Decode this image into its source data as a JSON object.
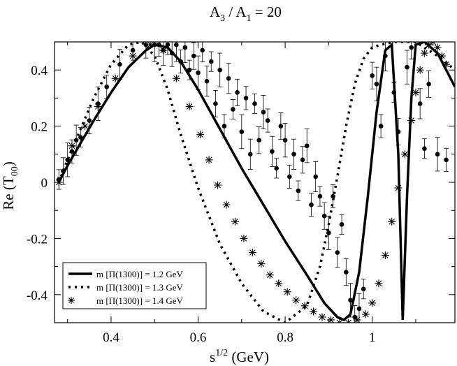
{
  "chart_data": {
    "type": "line",
    "title": {
      "main": "A",
      "sub1": "3",
      "sep": " / A",
      "sub2": "1",
      "rhs": " = 20"
    },
    "xlabel": {
      "main": "s",
      "sup": "1/2",
      "rest": " (GeV)"
    },
    "ylabel": {
      "main": "Re (T",
      "sub": "00",
      "rest": ")"
    },
    "xlim": [
      0.27,
      1.19
    ],
    "ylim": [
      -0.5,
      0.5
    ],
    "x_ticks": [
      0.4,
      0.6,
      0.8,
      1.0
    ],
    "x_tick_labels": [
      "0.4",
      "0.6",
      "0.8",
      "1"
    ],
    "y_ticks": [
      0.4,
      0.2,
      0.0,
      -0.2,
      -0.4
    ],
    "y_tick_labels": [
      "0.4",
      "0.2",
      "0",
      "-0.2",
      "-0.4"
    ],
    "legend": [
      {
        "label": "m [Π(1300)]  = 1.2 GeV",
        "style": "solid"
      },
      {
        "label": "m [Π(1300)]  = 1.3 GeV",
        "style": "dotted"
      },
      {
        "label": "m [Π(1300)]  = 1.4 GeV",
        "style": "asterisk"
      }
    ],
    "series": [
      {
        "name": "m [Π(1300)] = 1.2 GeV",
        "style": "solid",
        "x": [
          0.28,
          0.3,
          0.33,
          0.36,
          0.4,
          0.44,
          0.48,
          0.5,
          0.53,
          0.56,
          0.6,
          0.65,
          0.7,
          0.75,
          0.8,
          0.85,
          0.89,
          0.92,
          0.935,
          0.95,
          0.97,
          0.99,
          1.01,
          1.03,
          1.045,
          1.06,
          1.07,
          1.08,
          1.09,
          1.1,
          1.12,
          1.15,
          1.19
        ],
        "y": [
          0.0,
          0.06,
          0.14,
          0.22,
          0.32,
          0.41,
          0.47,
          0.49,
          0.48,
          0.43,
          0.33,
          0.19,
          0.05,
          -0.08,
          -0.21,
          -0.33,
          -0.43,
          -0.48,
          -0.49,
          -0.47,
          -0.32,
          -0.05,
          0.25,
          0.47,
          0.49,
          0.1,
          -0.49,
          -0.05,
          0.3,
          0.49,
          0.5,
          0.46,
          0.34
        ]
      },
      {
        "name": "m [Π(1300)] = 1.3 GeV",
        "style": "dotted",
        "x": [
          0.28,
          0.3,
          0.33,
          0.36,
          0.4,
          0.44,
          0.47,
          0.5,
          0.53,
          0.56,
          0.6,
          0.65,
          0.7,
          0.75,
          0.8,
          0.85,
          0.88,
          0.9,
          0.92,
          0.94,
          0.96,
          0.98,
          1.0,
          1.02,
          1.05,
          1.08,
          1.1,
          1.12,
          1.16,
          1.19
        ],
        "y": [
          0.0,
          0.08,
          0.19,
          0.3,
          0.42,
          0.49,
          0.5,
          0.45,
          0.33,
          0.17,
          -0.02,
          -0.22,
          -0.36,
          -0.46,
          -0.5,
          -0.44,
          -0.3,
          -0.15,
          0.02,
          0.2,
          0.35,
          0.44,
          0.48,
          0.49,
          0.5,
          0.5,
          0.5,
          0.48,
          0.44,
          0.4
        ]
      },
      {
        "name": "m [Π(1300)] = 1.4 GeV",
        "style": "asterisk",
        "x": [
          0.28,
          0.31,
          0.34,
          0.37,
          0.41,
          0.45,
          0.49,
          0.52,
          0.55,
          0.58,
          0.605,
          0.625,
          0.645,
          0.665,
          0.685,
          0.705,
          0.725,
          0.745,
          0.765,
          0.785,
          0.805,
          0.825,
          0.845,
          0.865,
          0.885,
          0.905,
          0.925,
          0.945,
          0.965,
          0.985,
          1.0,
          1.015,
          1.03,
          1.045,
          1.06,
          1.075,
          1.09,
          1.1,
          1.11,
          1.12,
          1.13,
          1.14,
          1.15,
          1.16,
          1.17
        ],
        "y": [
          0.0,
          0.13,
          0.2,
          0.27,
          0.37,
          0.45,
          0.49,
          0.47,
          0.37,
          0.27,
          0.17,
          0.08,
          -0.01,
          -0.08,
          -0.14,
          -0.2,
          -0.25,
          -0.29,
          -0.33,
          -0.36,
          -0.39,
          -0.42,
          -0.44,
          -0.46,
          -0.48,
          -0.49,
          -0.5,
          -0.5,
          -0.49,
          -0.47,
          -0.43,
          -0.36,
          -0.26,
          -0.14,
          -0.02,
          0.1,
          0.22,
          0.32,
          0.4,
          0.46,
          0.49,
          0.5,
          0.48,
          0.45,
          0.42
        ]
      },
      {
        "name": "data",
        "style": "points",
        "x": [
          0.28,
          0.29,
          0.3,
          0.31,
          0.32,
          0.33,
          0.35,
          0.37,
          0.39,
          0.42,
          0.45,
          0.48,
          0.5,
          0.51,
          0.52,
          0.53,
          0.54,
          0.55,
          0.56,
          0.57,
          0.58,
          0.59,
          0.6,
          0.61,
          0.62,
          0.63,
          0.64,
          0.65,
          0.66,
          0.67,
          0.68,
          0.69,
          0.7,
          0.71,
          0.72,
          0.73,
          0.74,
          0.75,
          0.76,
          0.77,
          0.78,
          0.79,
          0.8,
          0.81,
          0.82,
          0.83,
          0.84,
          0.85,
          0.86,
          0.87,
          0.88,
          0.89,
          0.9,
          0.91,
          0.92,
          0.93,
          0.94,
          0.95,
          0.96,
          0.97,
          0.98,
          1.0,
          1.01,
          1.02,
          1.03,
          1.05,
          1.06,
          1.08,
          1.09,
          1.11,
          1.12,
          1.13,
          1.15,
          1.17
        ],
        "y": [
          0.01,
          0.04,
          0.08,
          0.11,
          0.15,
          0.16,
          0.22,
          0.28,
          0.34,
          0.42,
          0.47,
          0.49,
          0.49,
          0.49,
          0.47,
          0.49,
          0.46,
          0.49,
          0.43,
          0.48,
          0.4,
          0.45,
          0.39,
          0.47,
          0.36,
          0.43,
          0.28,
          0.4,
          0.2,
          0.37,
          0.26,
          0.32,
          0.18,
          0.3,
          0.1,
          0.28,
          0.15,
          0.25,
          0.22,
          0.11,
          0.05,
          0.2,
          0.15,
          0.02,
          0.1,
          -0.03,
          0.08,
          0.13,
          -0.08,
          0.02,
          -0.05,
          -0.12,
          -0.18,
          -0.05,
          -0.25,
          -0.15,
          -0.32,
          -0.42,
          -0.48,
          -0.45,
          -0.38,
          0.38,
          0.35,
          0.2,
          0.45,
          0.32,
          0.18,
          0.41,
          0.48,
          0.28,
          0.12,
          0.35,
          0.1,
          0.08
        ]
      }
    ]
  }
}
